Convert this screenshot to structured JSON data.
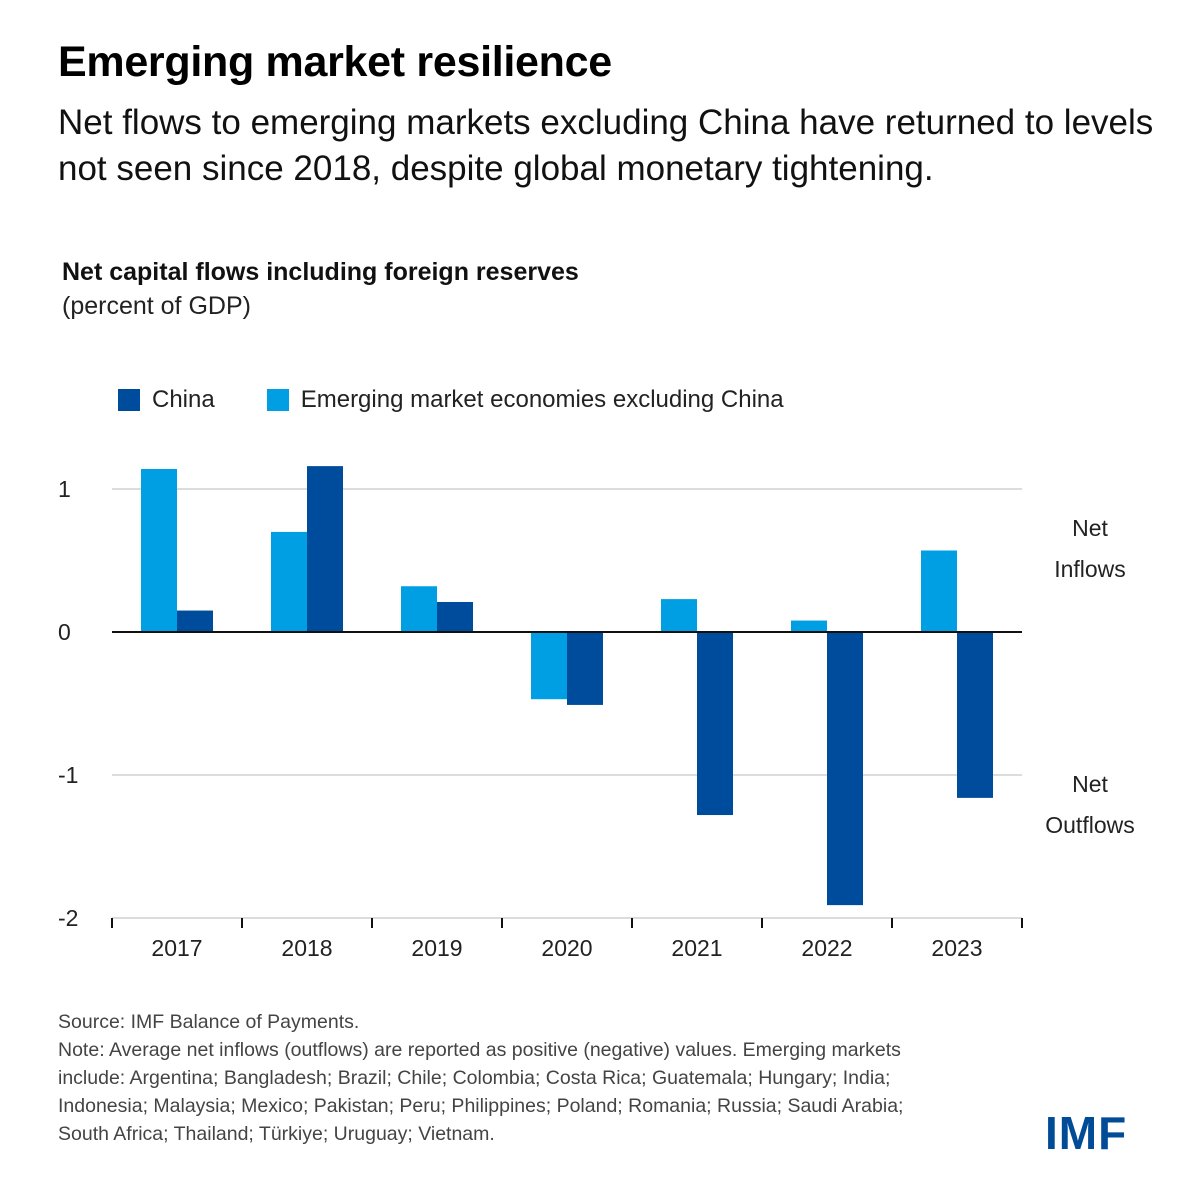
{
  "header": {
    "title": "Emerging market resilience",
    "subtitle": "Net flows to emerging markets excluding China have returned to levels not seen since 2018, despite global monetary tightening."
  },
  "chart_data": {
    "type": "bar",
    "title": "Net capital flows including foreign reserves",
    "subtitle": "(percent of GDP)",
    "xlabel": "",
    "ylabel": "percent of GDP",
    "categories": [
      "2017",
      "2018",
      "2019",
      "2020",
      "2021",
      "2022",
      "2023"
    ],
    "series": [
      {
        "name": "Emerging market economies excluding China",
        "color": "#009fe3",
        "values": [
          1.14,
          0.7,
          0.32,
          -0.47,
          0.23,
          0.08,
          0.57
        ]
      },
      {
        "name": "China",
        "color": "#004c9c",
        "values": [
          0.15,
          1.16,
          0.21,
          -0.51,
          -1.28,
          -1.91,
          -1.16
        ]
      }
    ],
    "legend_order": [
      "China",
      "Emerging market economies excluding China"
    ],
    "ylim": [
      -2,
      1.25
    ],
    "yticks": [
      1,
      0,
      -1,
      -2
    ],
    "ytick_labels": [
      "1",
      "0",
      "-1",
      "-2"
    ],
    "grid": true,
    "legend_position": "top-left",
    "annotations": {
      "inflows_line1": "Net",
      "inflows_line2": "Inflows",
      "outflows_line1": "Net",
      "outflows_line2": "Outflows"
    }
  },
  "footer": {
    "source": "Source: IMF Balance of Payments.",
    "note": "Note: Average net inflows (outflows) are reported as positive (negative) values. Emerging markets include: Argentina; Bangladesh; Brazil; Chile; Colombia; Costa Rica; Guatemala; Hungary; India; Indonesia; Malaysia; Mexico; Pakistan; Peru; Philippines; Poland; Romania; Russia; Saudi Arabia; South Africa; Thailand; Türkiye; Uruguay; Vietnam."
  },
  "logo": {
    "text": "IMF"
  }
}
